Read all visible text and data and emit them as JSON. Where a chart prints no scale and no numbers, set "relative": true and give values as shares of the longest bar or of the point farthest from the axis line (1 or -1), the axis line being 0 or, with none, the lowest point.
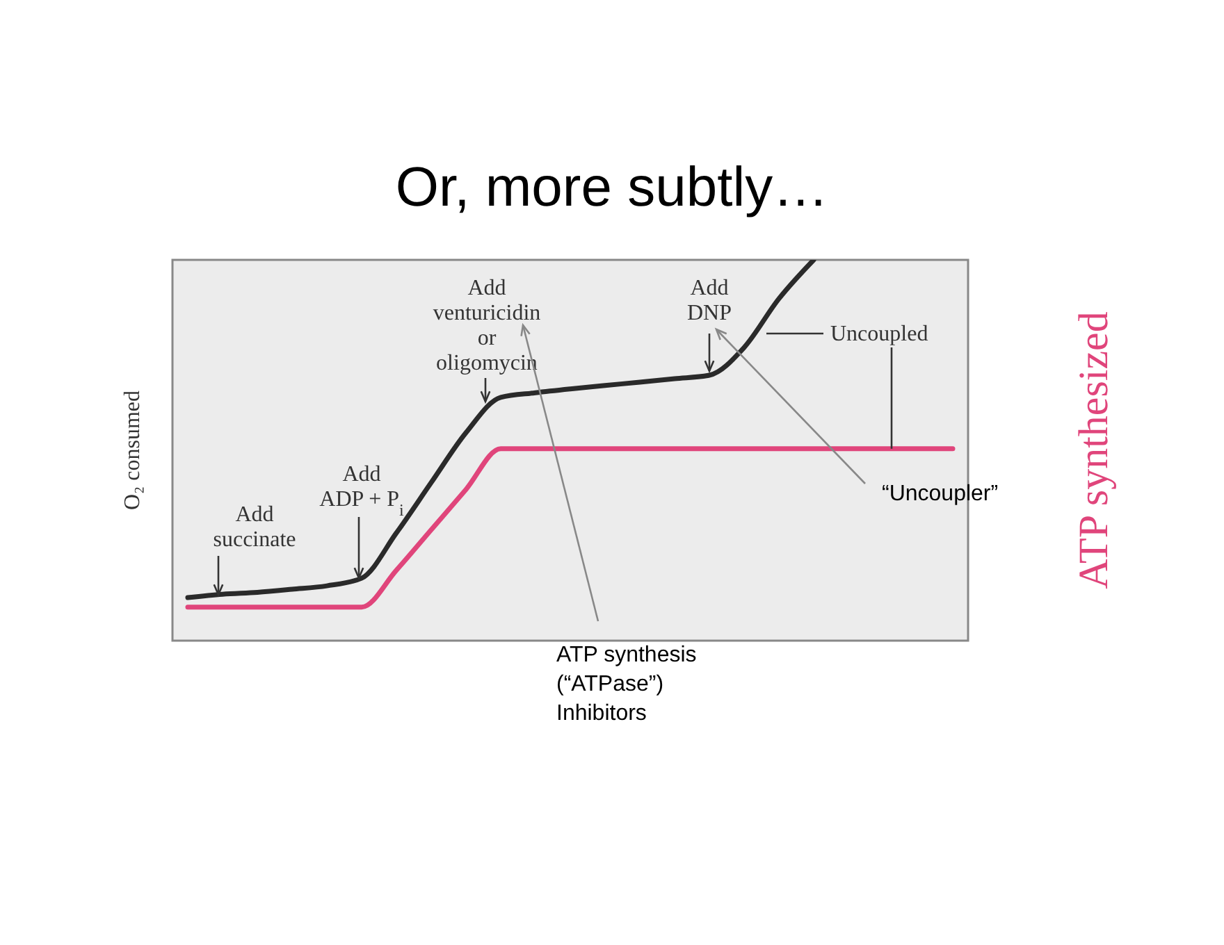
{
  "chart_data": {
    "type": "line",
    "title": "Or, more subtly…",
    "ylabel": "O₂ consumed",
    "y2label": "ATP synthesized",
    "relative": true,
    "grid": false,
    "categories": [
      null,
      null,
      null,
      null,
      null,
      null,
      null,
      null,
      null,
      null,
      null,
      null,
      null,
      null,
      null,
      null,
      null,
      null,
      null,
      null,
      null,
      null,
      null
    ],
    "series": [
      {
        "color": "#2a2a2a",
        "values": [
          0.113,
          0.122,
          0.127,
          0.135,
          0.144,
          0.164,
          0.283,
          0.415,
          0.546,
          0.639,
          0.651,
          0.661,
          0.67,
          0.679,
          0.688,
          0.697,
          0.77,
          0.898,
          1.0,
          null,
          null,
          null,
          null
        ]
      },
      {
        "color": "#e0457b",
        "values": [
          0.088,
          0.088,
          0.088,
          0.088,
          0.088,
          0.088,
          0.185,
          0.291,
          0.397,
          0.504,
          0.504,
          0.504,
          0.504,
          0.504,
          0.504,
          0.504,
          0.504,
          0.504,
          0.504,
          0.504,
          0.504,
          0.504,
          0.504
        ]
      }
    ],
    "annotations": [
      "Add\nsuccinate",
      "Add\nADP + P$_{i}$",
      "Add\nventuricidin\nor\noligomycin",
      "Add\nDNP",
      "Uncoupled",
      "“Uncoupler”",
      "ATP synthesis\n(“ATPase”)\nInhibitors"
    ]
  }
}
